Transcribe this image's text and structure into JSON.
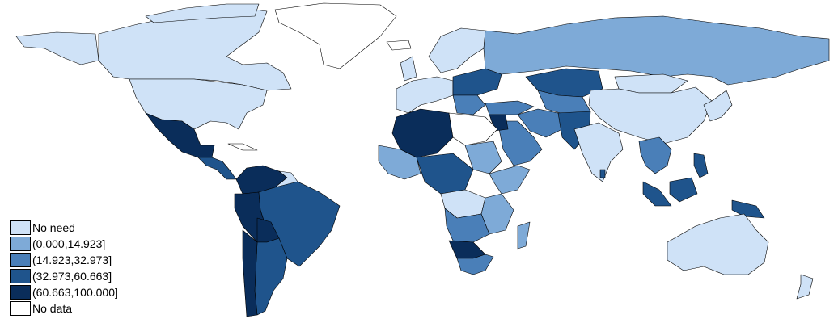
{
  "map": {
    "classes": [
      {
        "key": "none",
        "label": "No need",
        "color": "#cfe2f7"
      },
      {
        "key": "c1",
        "label": "(0.000,14.923]",
        "color": "#7eaad7"
      },
      {
        "key": "c2",
        "label": "(14.923,32.973]",
        "color": "#4a7fb8"
      },
      {
        "key": "c3",
        "label": "(32.973,60.663]",
        "color": "#1f548c"
      },
      {
        "key": "c4",
        "label": "(60.663,100.000]",
        "color": "#0a2d5a"
      },
      {
        "key": "nodata",
        "label": "No data",
        "color": "#ffffff"
      }
    ]
  }
}
